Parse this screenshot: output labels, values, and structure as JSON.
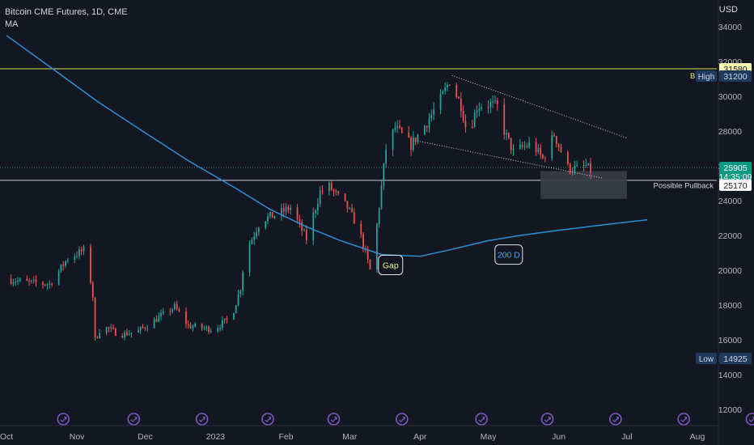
{
  "header": {
    "symbol_line": "Bitcoin CME Futures, 1D, CME",
    "indicator": "MA",
    "currency": "USD"
  },
  "colors": {
    "background": "#131722",
    "bull": "#26a69a",
    "bear": "#ef5350",
    "ma": "#2a8fd6",
    "level_line": "#d4e157",
    "level_badge": "#f6f6b0",
    "price_badge": "#089981",
    "icon": "#7e57c2"
  },
  "chart_data": {
    "type": "candlestick",
    "ylim": [
      11000,
      36000
    ],
    "y_ticks": [
      12000,
      14000,
      16000,
      18000,
      20000,
      22000,
      24000,
      26000,
      28000,
      30000,
      32000,
      34000
    ],
    "x_ticks": [
      {
        "label": "Oct",
        "date": "2022-10-01"
      },
      {
        "label": "Nov",
        "date": "2022-11-01"
      },
      {
        "label": "Dec",
        "date": "2022-12-01"
      },
      {
        "label": "2023",
        "date": "2023-01-01"
      },
      {
        "label": "Feb",
        "date": "2023-02-01"
      },
      {
        "label": "Mar",
        "date": "2023-03-01"
      },
      {
        "label": "Apr",
        "date": "2023-04-01"
      },
      {
        "label": "May",
        "date": "2023-05-01"
      },
      {
        "label": "Jun",
        "date": "2023-06-01"
      },
      {
        "label": "Jul",
        "date": "2023-07-01"
      },
      {
        "label": "Aug",
        "date": "2023-08-01"
      }
    ],
    "price_path": [
      [
        "2022-10-01",
        19500
      ],
      [
        "2022-10-10",
        19300
      ],
      [
        "2022-10-20",
        19200
      ],
      [
        "2022-10-28",
        20700
      ],
      [
        "2022-11-05",
        21200
      ],
      [
        "2022-11-08",
        18500
      ],
      [
        "2022-11-09",
        16000
      ],
      [
        "2022-11-12",
        16800
      ],
      [
        "2022-11-20",
        16300
      ],
      [
        "2022-11-28",
        16500
      ],
      [
        "2022-12-05",
        17100
      ],
      [
        "2022-12-14",
        17900
      ],
      [
        "2022-12-20",
        16800
      ],
      [
        "2022-12-31",
        16600
      ],
      [
        "2023-01-08",
        17300
      ],
      [
        "2023-01-12",
        19000
      ],
      [
        "2023-01-14",
        21000
      ],
      [
        "2023-01-21",
        22900
      ],
      [
        "2023-01-28",
        23200
      ],
      [
        "2023-02-03",
        23600
      ],
      [
        "2023-02-10",
        21800
      ],
      [
        "2023-02-16",
        24500
      ],
      [
        "2023-02-20",
        24800
      ],
      [
        "2023-02-28",
        23600
      ],
      [
        "2023-03-05",
        22400
      ],
      [
        "2023-03-10",
        20000
      ],
      [
        "2023-03-13",
        22600
      ],
      [
        "2023-03-17",
        27000
      ],
      [
        "2023-03-21",
        28200
      ],
      [
        "2023-03-28",
        27200
      ],
      [
        "2023-04-03",
        28300
      ],
      [
        "2023-04-10",
        29800
      ],
      [
        "2023-04-14",
        30900
      ],
      [
        "2023-04-19",
        29500
      ],
      [
        "2023-04-22",
        27700
      ],
      [
        "2023-04-26",
        29400
      ],
      [
        "2023-04-30",
        29600
      ],
      [
        "2023-05-05",
        29400
      ],
      [
        "2023-05-08",
        28000
      ],
      [
        "2023-05-12",
        26800
      ],
      [
        "2023-05-20",
        27300
      ],
      [
        "2023-05-25",
        26400
      ],
      [
        "2023-05-30",
        27800
      ],
      [
        "2023-06-05",
        25900
      ],
      [
        "2023-06-10",
        25800
      ],
      [
        "2023-06-13",
        26000
      ],
      [
        "2023-06-15",
        25700
      ]
    ],
    "moving_average": {
      "name": "200 D",
      "points": [
        [
          "2022-10-01",
          33500
        ],
        [
          "2022-10-20",
          31700
        ],
        [
          "2022-11-10",
          29700
        ],
        [
          "2022-12-01",
          27900
        ],
        [
          "2022-12-20",
          26300
        ],
        [
          "2023-01-10",
          24700
        ],
        [
          "2023-01-25",
          23500
        ],
        [
          "2023-02-10",
          22500
        ],
        [
          "2023-02-25",
          21700
        ],
        [
          "2023-03-15",
          20900
        ],
        [
          "2023-04-01",
          20800
        ],
        [
          "2023-04-15",
          21200
        ],
        [
          "2023-05-01",
          21700
        ],
        [
          "2023-05-15",
          22000
        ],
        [
          "2023-06-01",
          22300
        ],
        [
          "2023-06-20",
          22600
        ],
        [
          "2023-07-10",
          22900
        ]
      ]
    },
    "horizontal_levels": [
      {
        "value": 31580,
        "label": "31580",
        "style": "solid-yellow"
      },
      {
        "value": 25170,
        "label": "25170",
        "style": "solid-white"
      }
    ],
    "current_price": {
      "value": 25905,
      "label": "25905",
      "countdown": "14:35:09"
    },
    "high": {
      "label": "High",
      "value": "31200"
    },
    "low": {
      "label": "Low",
      "value": "14925"
    },
    "trendlines": [
      {
        "from": [
          "2023-04-15",
          31200
        ],
        "to": [
          "2023-07-01",
          27600
        ]
      },
      {
        "from": [
          "2023-04-01",
          27400
        ],
        "to": [
          "2023-06-20",
          25300
        ]
      }
    ],
    "pullback_zone": {
      "from_date": "2023-05-24",
      "to_date": "2023-07-01",
      "top": 25700,
      "bottom": 24100
    },
    "annotations": [
      {
        "text": "Gap",
        "date": "2023-03-19",
        "value": 20300
      },
      {
        "text": "200 D",
        "date": "2023-05-10",
        "value": 20900
      },
      {
        "text": "Possible Pullback",
        "date": "2023-07-15",
        "value": 24900
      },
      {
        "text": "Br",
        "date": "2023-07-14",
        "value": 31200
      }
    ],
    "event_icon_dates": [
      "2022-10-26",
      "2022-11-26",
      "2022-12-26",
      "2023-01-24",
      "2023-02-22",
      "2023-03-24",
      "2023-04-28",
      "2023-05-27",
      "2023-06-26",
      "2023-07-26",
      "2023-08-25"
    ]
  }
}
